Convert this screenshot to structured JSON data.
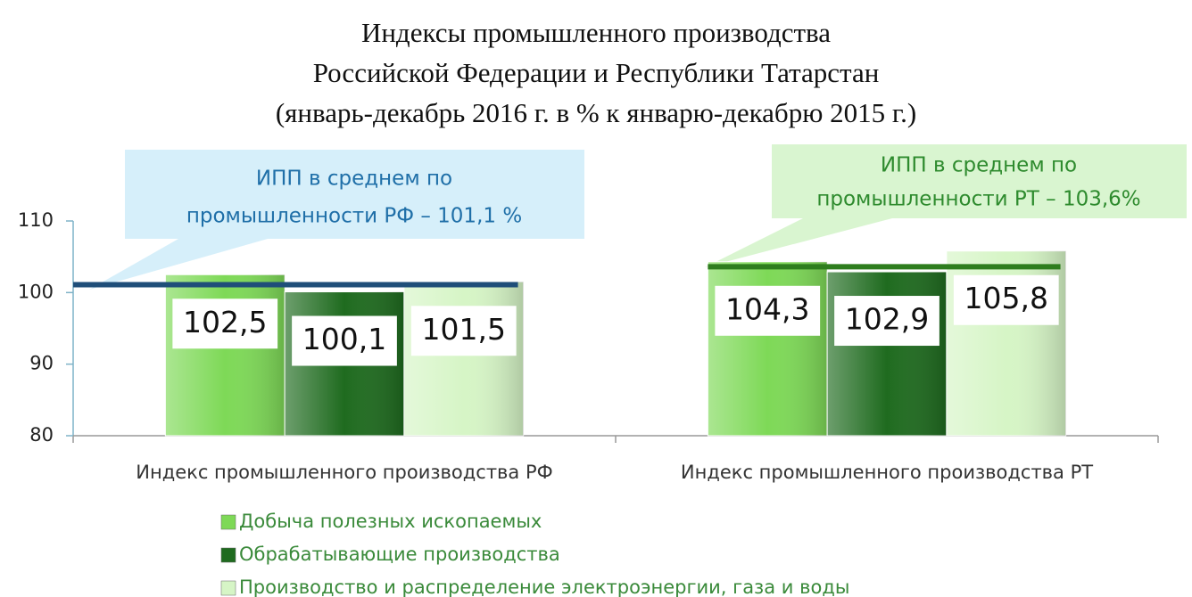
{
  "chart_data": {
    "type": "bar",
    "title": [
      "Индексы промышленного производства",
      "Российской Федерации и Республики Татарстан",
      "(январь-декабрь 2016 г. в % к январю-декабрю 2015 г.)"
    ],
    "categories": [
      "Индекс промышленного производства РФ",
      "Индекс промышленного производства РТ"
    ],
    "series": [
      {
        "name": "Добыча полезных ископаемых",
        "color": "#7ed957",
        "values": [
          102.5,
          104.3
        ],
        "value_labels": [
          "102,5",
          "104,3"
        ]
      },
      {
        "name": "Обрабатывающие производства",
        "color": "#1f6b1f",
        "values": [
          100.1,
          102.9
        ],
        "value_labels": [
          "100,1",
          "102,9"
        ]
      },
      {
        "name": "Производство и распределение электроэнергии, газа и воды",
        "color": "#d6f5c6",
        "values": [
          101.5,
          105.8
        ],
        "value_labels": [
          "101,5",
          "105,8"
        ]
      }
    ],
    "annotations": [
      {
        "text": [
          "ИПП в среднем по",
          "промышленности РФ – 101,1 %"
        ],
        "value": 101.1,
        "color": "#1f4e79"
      },
      {
        "text": [
          "ИПП в среднем по",
          "промышленности РТ – 103,6%"
        ],
        "value": 103.6,
        "color": "#2e7d1e"
      }
    ],
    "ylim": [
      80,
      110
    ],
    "yticks": [
      80,
      90,
      100,
      110
    ],
    "grid": false
  }
}
